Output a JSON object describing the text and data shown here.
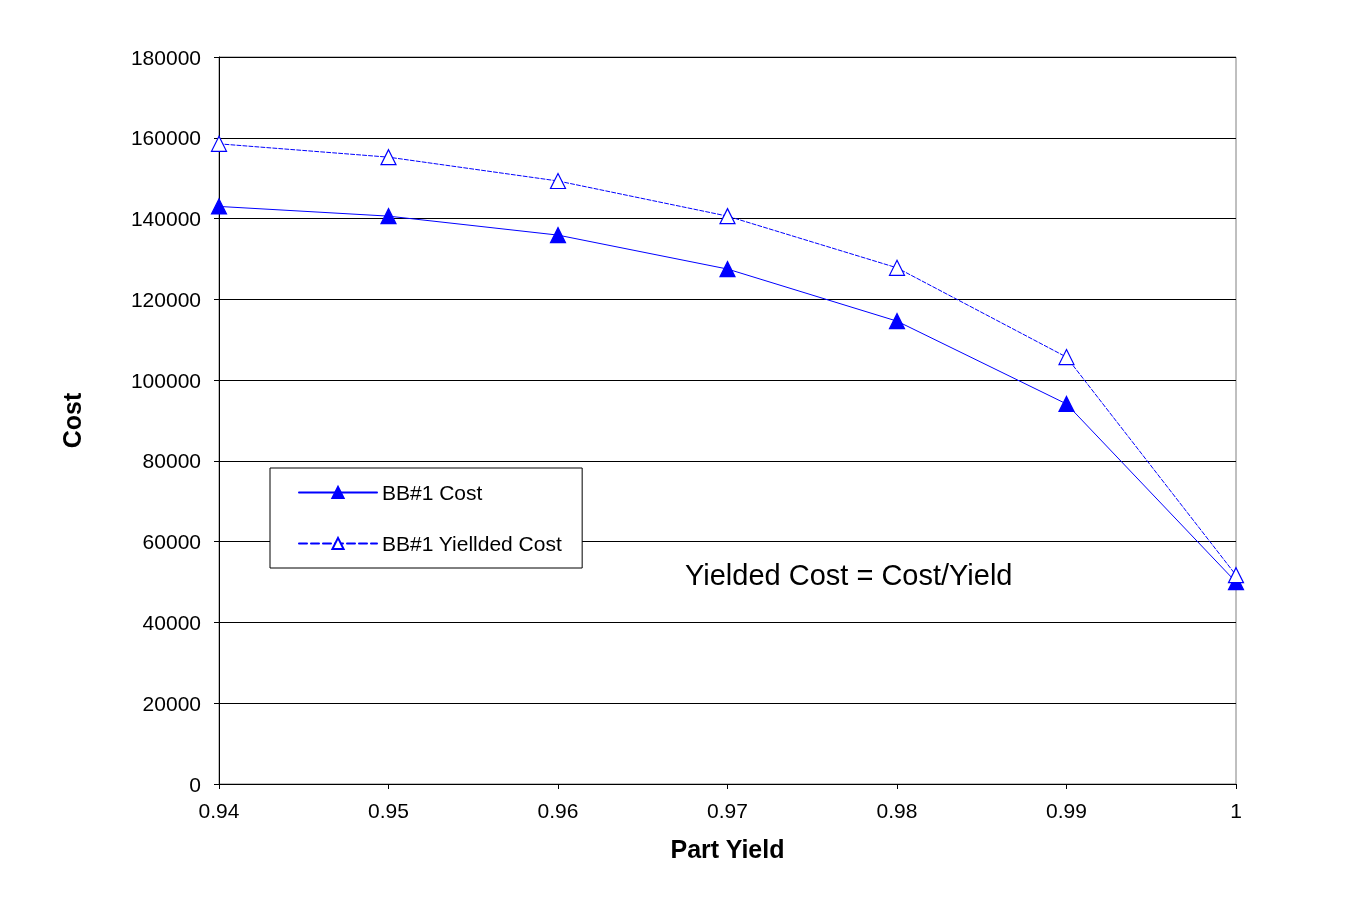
{
  "chart_data": {
    "type": "line",
    "xlabel": "Part Yield",
    "ylabel": "Cost",
    "x": [
      0.94,
      0.95,
      0.96,
      0.97,
      0.98,
      0.99,
      1
    ],
    "series": [
      {
        "name": "BB#1 Cost",
        "color": "#0000ff",
        "line_style": "solid",
        "values": [
          143000,
          140600,
          135900,
          127500,
          114600,
          94100,
          50000
        ]
      },
      {
        "name": "BB#1 Yiellded Cost",
        "color": "#0000ff",
        "line_style": "dashed",
        "values": [
          158500,
          155200,
          149300,
          140600,
          127800,
          105700,
          51700
        ]
      }
    ],
    "xlim": [
      0.94,
      1
    ],
    "xticks": [
      0.94,
      0.95,
      0.96,
      0.97,
      0.98,
      0.99,
      1
    ],
    "ylim": [
      0,
      180000
    ],
    "yticks": [
      0,
      20000,
      40000,
      60000,
      80000,
      100000,
      120000,
      140000,
      160000,
      180000
    ],
    "grid": "y",
    "legend": "left",
    "marker": "triangle",
    "annotations": [
      "Yielded Cost = Cost/Yield"
    ]
  }
}
